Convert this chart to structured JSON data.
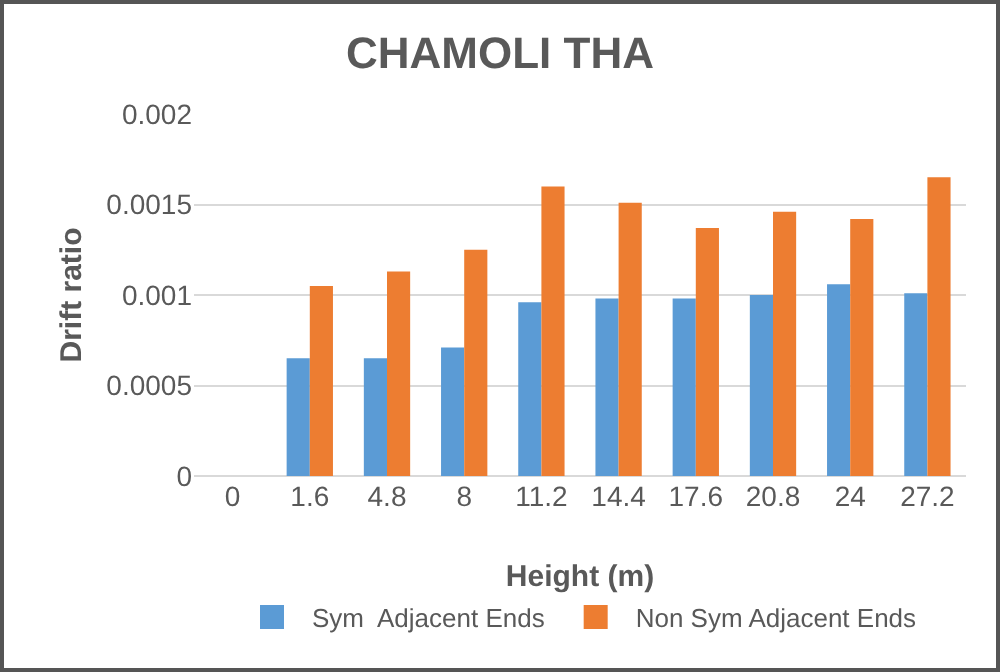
{
  "chart_data": {
    "type": "bar",
    "title": "CHAMOLI THA",
    "xlabel": "Height (m)",
    "ylabel": "Drift ratio",
    "categories": [
      "0",
      "1.6",
      "4.8",
      "8",
      "11.2",
      "14.4",
      "17.6",
      "20.8",
      "24",
      "27.2"
    ],
    "series": [
      {
        "name": "Sym  Adjacent Ends",
        "color": "#5b9bd5",
        "values": [
          0,
          0.00065,
          0.00065,
          0.00071,
          0.00096,
          0.00098,
          0.00098,
          0.001,
          0.00106,
          0.00101
        ]
      },
      {
        "name": "Non Sym Adjacent Ends",
        "color": "#ed7d31",
        "values": [
          0,
          0.00105,
          0.00113,
          0.00125,
          0.0016,
          0.00151,
          0.00137,
          0.00146,
          0.00142,
          0.00165
        ]
      }
    ],
    "ylim": [
      0,
      0.002
    ],
    "yticks": [
      0,
      0.0005,
      0.001,
      0.0015,
      0.002
    ],
    "grid": "y",
    "legend": "bottom"
  }
}
